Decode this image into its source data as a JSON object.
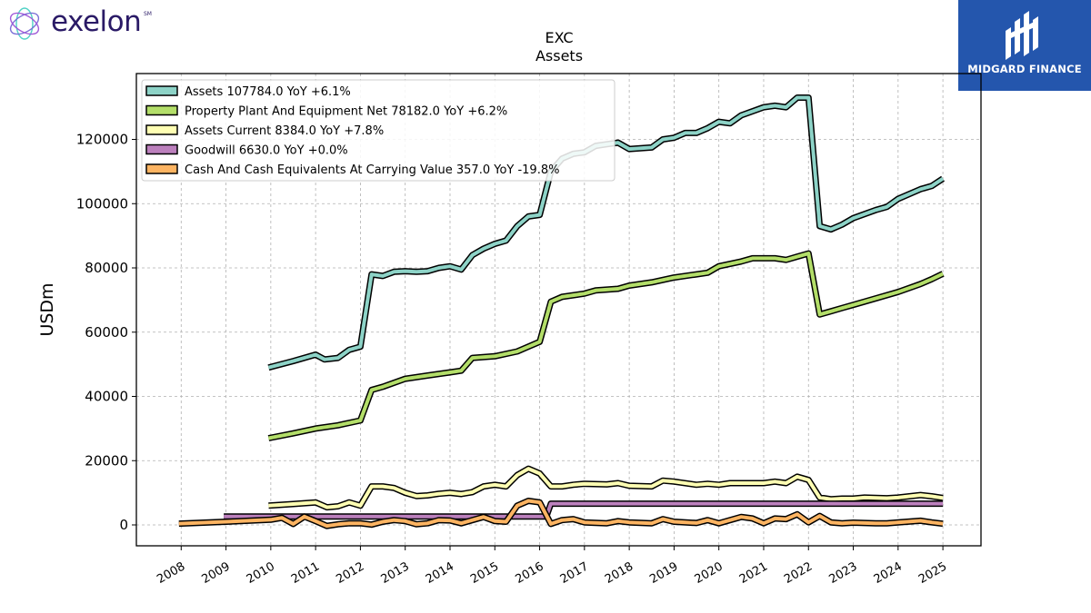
{
  "logos": {
    "left_text": "exelon",
    "left_mark": "SM",
    "right_text": "MIDGARD FINANCE"
  },
  "chart_data": {
    "type": "line",
    "title": "EXC",
    "subtitle": "Assets",
    "ylabel": "USDm",
    "xlabel": "",
    "xlim": [
      2007.0,
      2025.85
    ],
    "ylim": [
      -6500,
      140500
    ],
    "yticks": [
      0,
      20000,
      40000,
      60000,
      80000,
      100000,
      120000
    ],
    "xticks": [
      "2008",
      "2009",
      "2010",
      "2011",
      "2012",
      "2013",
      "2014",
      "2015",
      "2016",
      "2017",
      "2018",
      "2019",
      "2020",
      "2021",
      "2022",
      "2023",
      "2024",
      "2025"
    ],
    "grid": true,
    "legend_position": "top-left",
    "series": [
      {
        "name": "Assets",
        "legend": "Assets  107784.0 YoY +6.1%",
        "color": "#8dd3c7",
        "points": [
          [
            2009.95,
            49000
          ],
          [
            2010.5,
            51000
          ],
          [
            2011.0,
            53000
          ],
          [
            2011.2,
            51500
          ],
          [
            2011.5,
            52000
          ],
          [
            2011.75,
            54500
          ],
          [
            2012.0,
            55500
          ],
          [
            2012.25,
            78000
          ],
          [
            2012.5,
            77500
          ],
          [
            2012.75,
            78800
          ],
          [
            2013.0,
            79000
          ],
          [
            2013.25,
            78800
          ],
          [
            2013.5,
            79000
          ],
          [
            2013.75,
            80000
          ],
          [
            2014.0,
            80500
          ],
          [
            2014.25,
            79500
          ],
          [
            2014.5,
            84000
          ],
          [
            2014.75,
            86000
          ],
          [
            2015.0,
            87500
          ],
          [
            2015.25,
            88500
          ],
          [
            2015.5,
            93000
          ],
          [
            2015.75,
            96000
          ],
          [
            2016.0,
            96500
          ],
          [
            2016.25,
            110000
          ],
          [
            2016.5,
            114000
          ],
          [
            2016.75,
            115500
          ],
          [
            2017.0,
            116000
          ],
          [
            2017.25,
            118000
          ],
          [
            2017.5,
            118500
          ],
          [
            2017.75,
            119000
          ],
          [
            2018.0,
            117000
          ],
          [
            2018.5,
            117500
          ],
          [
            2018.75,
            120000
          ],
          [
            2019.0,
            120500
          ],
          [
            2019.25,
            122000
          ],
          [
            2019.5,
            122000
          ],
          [
            2019.75,
            123500
          ],
          [
            2020.0,
            125500
          ],
          [
            2020.25,
            125000
          ],
          [
            2020.5,
            127500
          ],
          [
            2021.0,
            130000
          ],
          [
            2021.25,
            130500
          ],
          [
            2021.5,
            130000
          ],
          [
            2021.75,
            133000
          ],
          [
            2022.0,
            133000
          ],
          [
            2022.25,
            93000
          ],
          [
            2022.5,
            92000
          ],
          [
            2022.75,
            93500
          ],
          [
            2023.0,
            95500
          ],
          [
            2023.5,
            98000
          ],
          [
            2023.75,
            99000
          ],
          [
            2024.0,
            101500
          ],
          [
            2024.5,
            104500
          ],
          [
            2024.75,
            105500
          ],
          [
            2025.0,
            107784
          ]
        ]
      },
      {
        "name": "Property Plant And Equipment Net",
        "legend": "Property Plant And Equipment Net  78182.0 YoY +6.2%",
        "color": "#b3de69",
        "points": [
          [
            2009.95,
            27000
          ],
          [
            2010.5,
            28500
          ],
          [
            2011.0,
            30000
          ],
          [
            2011.5,
            31000
          ],
          [
            2012.0,
            32500
          ],
          [
            2012.25,
            42000
          ],
          [
            2012.5,
            43000
          ],
          [
            2013.0,
            45500
          ],
          [
            2013.5,
            46500
          ],
          [
            2014.0,
            47500
          ],
          [
            2014.25,
            48000
          ],
          [
            2014.5,
            52000
          ],
          [
            2015.0,
            52500
          ],
          [
            2015.5,
            54000
          ],
          [
            2015.75,
            55500
          ],
          [
            2016.0,
            57000
          ],
          [
            2016.25,
            69500
          ],
          [
            2016.5,
            71000
          ],
          [
            2017.0,
            72000
          ],
          [
            2017.25,
            73000
          ],
          [
            2017.75,
            73500
          ],
          [
            2018.0,
            74500
          ],
          [
            2018.5,
            75500
          ],
          [
            2019.0,
            77000
          ],
          [
            2019.5,
            78000
          ],
          [
            2019.75,
            78500
          ],
          [
            2020.0,
            80500
          ],
          [
            2020.5,
            82000
          ],
          [
            2020.75,
            83000
          ],
          [
            2021.0,
            83000
          ],
          [
            2021.25,
            83000
          ],
          [
            2021.5,
            82500
          ],
          [
            2021.75,
            83500
          ],
          [
            2022.0,
            84500
          ],
          [
            2022.25,
            65500
          ],
          [
            2022.5,
            66500
          ],
          [
            2022.75,
            67500
          ],
          [
            2023.0,
            68500
          ],
          [
            2023.5,
            70500
          ],
          [
            2024.0,
            72500
          ],
          [
            2024.5,
            75000
          ],
          [
            2024.75,
            76500
          ],
          [
            2025.0,
            78182
          ]
        ]
      },
      {
        "name": "Assets Current",
        "legend": "Assets Current  8384.0 YoY +7.8%",
        "color": "#ffffb3",
        "points": [
          [
            2009.95,
            6000
          ],
          [
            2010.5,
            6500
          ],
          [
            2011.0,
            7000
          ],
          [
            2011.25,
            5500
          ],
          [
            2011.5,
            5800
          ],
          [
            2011.75,
            7000
          ],
          [
            2012.0,
            6000
          ],
          [
            2012.25,
            12000
          ],
          [
            2012.5,
            12000
          ],
          [
            2012.75,
            11500
          ],
          [
            2013.0,
            10000
          ],
          [
            2013.25,
            9000
          ],
          [
            2013.5,
            9200
          ],
          [
            2013.75,
            9700
          ],
          [
            2014.0,
            10000
          ],
          [
            2014.25,
            9600
          ],
          [
            2014.5,
            10200
          ],
          [
            2014.75,
            12000
          ],
          [
            2015.0,
            12500
          ],
          [
            2015.25,
            12000
          ],
          [
            2015.5,
            15500
          ],
          [
            2015.75,
            17500
          ],
          [
            2016.0,
            16000
          ],
          [
            2016.25,
            12000
          ],
          [
            2016.5,
            12000
          ],
          [
            2016.75,
            12500
          ],
          [
            2017.0,
            12800
          ],
          [
            2017.5,
            12600
          ],
          [
            2017.75,
            13000
          ],
          [
            2018.0,
            12200
          ],
          [
            2018.5,
            12000
          ],
          [
            2018.75,
            13800
          ],
          [
            2019.0,
            13500
          ],
          [
            2019.5,
            12500
          ],
          [
            2019.75,
            12800
          ],
          [
            2020.0,
            12500
          ],
          [
            2020.25,
            13000
          ],
          [
            2020.75,
            13000
          ],
          [
            2021.0,
            13000
          ],
          [
            2021.25,
            13500
          ],
          [
            2021.5,
            13000
          ],
          [
            2021.75,
            15000
          ],
          [
            2022.0,
            14000
          ],
          [
            2022.25,
            8500
          ],
          [
            2022.5,
            8000
          ],
          [
            2022.75,
            8200
          ],
          [
            2023.0,
            8200
          ],
          [
            2023.25,
            8500
          ],
          [
            2023.75,
            8300
          ],
          [
            2024.0,
            8500
          ],
          [
            2024.5,
            9300
          ],
          [
            2024.75,
            8900
          ],
          [
            2025.0,
            8384
          ]
        ]
      },
      {
        "name": "Goodwill",
        "legend": "Goodwill  6630.0 YoY +0.0%",
        "color": "#bc80bd",
        "points": [
          [
            2008.95,
            2600
          ],
          [
            2016.15,
            2600
          ],
          [
            2016.25,
            6630
          ],
          [
            2025.0,
            6630
          ]
        ]
      },
      {
        "name": "Cash And Cash Equivalents At Carrying Value",
        "legend": "Cash And Cash Equivalents At Carrying Value  357.0 YoY -19.8%",
        "color": "#fdb462",
        "points": [
          [
            2007.95,
            400
          ],
          [
            2009.0,
            1000
          ],
          [
            2010.0,
            1600
          ],
          [
            2010.25,
            2200
          ],
          [
            2010.5,
            300
          ],
          [
            2010.75,
            2600
          ],
          [
            2011.0,
            1200
          ],
          [
            2011.25,
            -300
          ],
          [
            2011.5,
            200
          ],
          [
            2011.75,
            500
          ],
          [
            2012.0,
            500
          ],
          [
            2012.25,
            100
          ],
          [
            2012.5,
            1000
          ],
          [
            2012.75,
            1500
          ],
          [
            2013.0,
            1200
          ],
          [
            2013.25,
            200
          ],
          [
            2013.5,
            500
          ],
          [
            2013.75,
            1500
          ],
          [
            2014.0,
            1400
          ],
          [
            2014.25,
            500
          ],
          [
            2014.5,
            1500
          ],
          [
            2014.75,
            2500
          ],
          [
            2015.0,
            1200
          ],
          [
            2015.25,
            1000
          ],
          [
            2015.5,
            6000
          ],
          [
            2015.75,
            7500
          ],
          [
            2016.0,
            7000
          ],
          [
            2016.25,
            300
          ],
          [
            2016.5,
            1500
          ],
          [
            2016.75,
            1800
          ],
          [
            2017.0,
            800
          ],
          [
            2017.5,
            500
          ],
          [
            2017.75,
            1200
          ],
          [
            2018.0,
            800
          ],
          [
            2018.5,
            500
          ],
          [
            2018.75,
            1800
          ],
          [
            2019.0,
            1000
          ],
          [
            2019.5,
            600
          ],
          [
            2019.75,
            1500
          ],
          [
            2020.0,
            500
          ],
          [
            2020.25,
            1500
          ],
          [
            2020.5,
            2500
          ],
          [
            2020.75,
            2000
          ],
          [
            2021.0,
            500
          ],
          [
            2021.25,
            2000
          ],
          [
            2021.5,
            1800
          ],
          [
            2021.75,
            3300
          ],
          [
            2022.0,
            800
          ],
          [
            2022.25,
            2800
          ],
          [
            2022.5,
            800
          ],
          [
            2022.75,
            500
          ],
          [
            2023.0,
            700
          ],
          [
            2023.5,
            500
          ],
          [
            2023.75,
            500
          ],
          [
            2024.0,
            800
          ],
          [
            2024.5,
            1300
          ],
          [
            2024.75,
            800
          ],
          [
            2025.0,
            357
          ]
        ]
      }
    ]
  }
}
